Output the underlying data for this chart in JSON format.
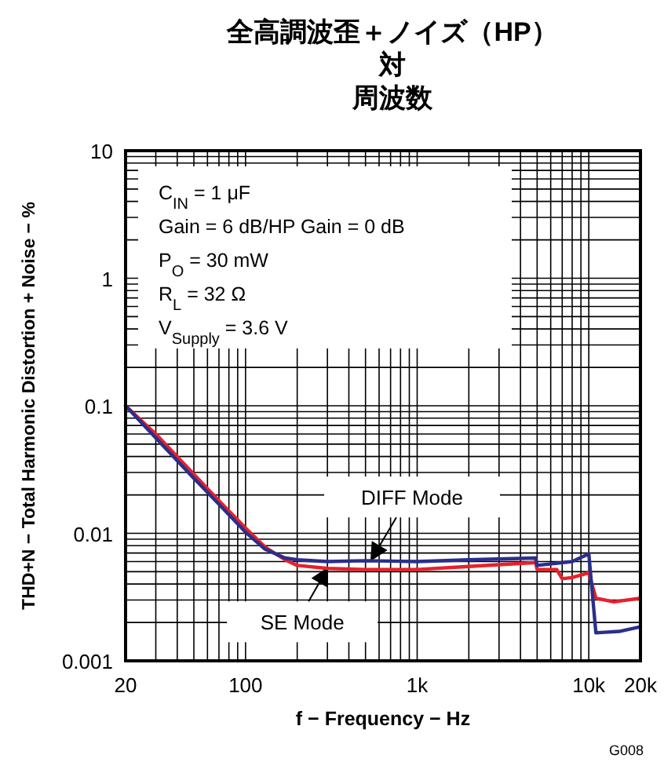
{
  "chart_data": {
    "type": "line",
    "title": "全高調波歪＋ノイズ（HP）",
    "subtitle": "対周波数",
    "xlabel": "f − Frequency − Hz",
    "ylabel": "THD+N − Total Harmonic Distortion + Noise − %",
    "log": "xy",
    "grid": true,
    "xlim": [
      20,
      20000
    ],
    "ylim": [
      0.001,
      10
    ],
    "xticks": [
      20,
      100,
      {
        "value": 1000,
        "label": "1k"
      },
      {
        "value": 10000,
        "label": "10k"
      },
      {
        "value": 20000,
        "label": "20k"
      }
    ],
    "yticks": [
      0.001,
      0.01,
      0.1,
      1,
      10
    ],
    "series": [
      {
        "color": "#e8202a",
        "x": [
          20,
          30,
          50,
          70,
          100,
          130,
          170,
          200,
          300,
          500,
          1000,
          2000,
          4900,
          5000,
          6500,
          7000,
          8000,
          10000,
          11000,
          14000,
          20000
        ],
        "values": [
          0.1,
          0.06,
          0.029,
          0.018,
          0.011,
          0.0078,
          0.0062,
          0.0056,
          0.0053,
          0.0052,
          0.0052,
          0.0055,
          0.0059,
          0.0052,
          0.0052,
          0.0044,
          0.0045,
          0.0049,
          0.0031,
          0.0029,
          0.0031
        ]
      },
      {
        "color": "#2a2f8c",
        "x": [
          20,
          30,
          50,
          70,
          100,
          130,
          170,
          200,
          300,
          500,
          1000,
          2000,
          4900,
          5000,
          8000,
          10000,
          11000,
          15000,
          20000
        ],
        "values": [
          0.1,
          0.056,
          0.027,
          0.0169,
          0.0102,
          0.0075,
          0.0064,
          0.0062,
          0.006,
          0.0061,
          0.006,
          0.0062,
          0.0064,
          0.0056,
          0.006,
          0.0069,
          0.00166,
          0.0017,
          0.00185
        ]
      }
    ],
    "annotations": [
      "C$_{IN}$ = 1 μF\nGain = 6 dB/HP Gain = 0 dB\nP$_{O}$ = 30 mW\nR$_{L}$ = 32 Ω\nV$_{Supply}$ = 3.6 V",
      {
        "text": "DIFF Mode",
        "x": 540,
        "y": 0.0062
      },
      {
        "text": "SE Mode",
        "x": 300,
        "y": 0.0053
      },
      "G008"
    ]
  }
}
